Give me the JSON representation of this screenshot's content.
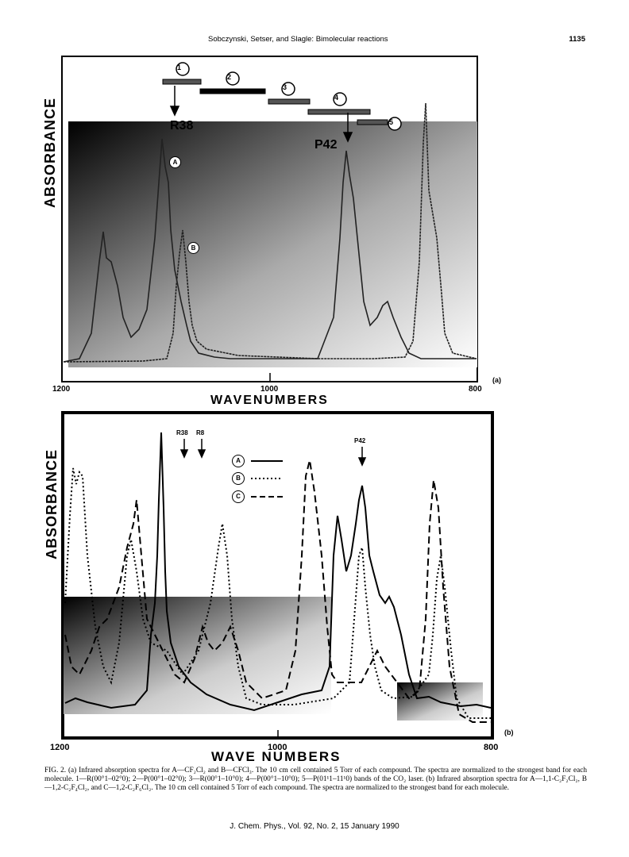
{
  "header": {
    "running_title": "Sobczynski, Setser, and Slagle: Bimolecular reactions",
    "page_number": "1135"
  },
  "figure_a": {
    "y_axis_label": "ABSORBANCE",
    "x_axis_label": "WAVENUMBERS",
    "x_ticks": [
      "1200",
      "1000",
      "800"
    ],
    "panel_tag": "(a)",
    "band_markers": [
      "1",
      "2",
      "3",
      "4",
      "5"
    ],
    "line_labels": [
      "R38",
      "P42"
    ],
    "curve_labels": [
      "A",
      "B"
    ]
  },
  "figure_b": {
    "y_axis_label": "ABSORBANCE",
    "x_axis_label": "WAVE NUMBERS",
    "x_ticks": [
      "1200",
      "1000",
      "800"
    ],
    "panel_tag": "(b)",
    "line_labels": [
      "R38",
      "R8",
      "P42"
    ],
    "legend": [
      "A",
      "B",
      "C"
    ]
  },
  "caption": "FIG. 2. (a) Infrared absorption spectra for A—CF₂Cl₂ and B—CFCl₃. The 10 cm cell contained 5 Torr of each compound. The spectra are normalized to the strongest band for each molecule. 1—R(00°1–02°0); 2—P(00°1–02°0); 3—R(00°1–10°0); 4—P(00°1–10°0); 5—P(01¹1–11¹0) bands of the CO₂ laser. (b) Infrared absorption spectra for A—1,1-C₂F₂Cl₂, B—1,2-C₂F₄Cl₂, and C—1,2-C₂F₆Cl₂. The 10 cm cell contained 5 Torr of each compound. The spectra are normalized to the strongest band for each molecule.",
  "footer": "J. Chem. Phys., Vol. 92, No. 2, 15 January 1990"
}
